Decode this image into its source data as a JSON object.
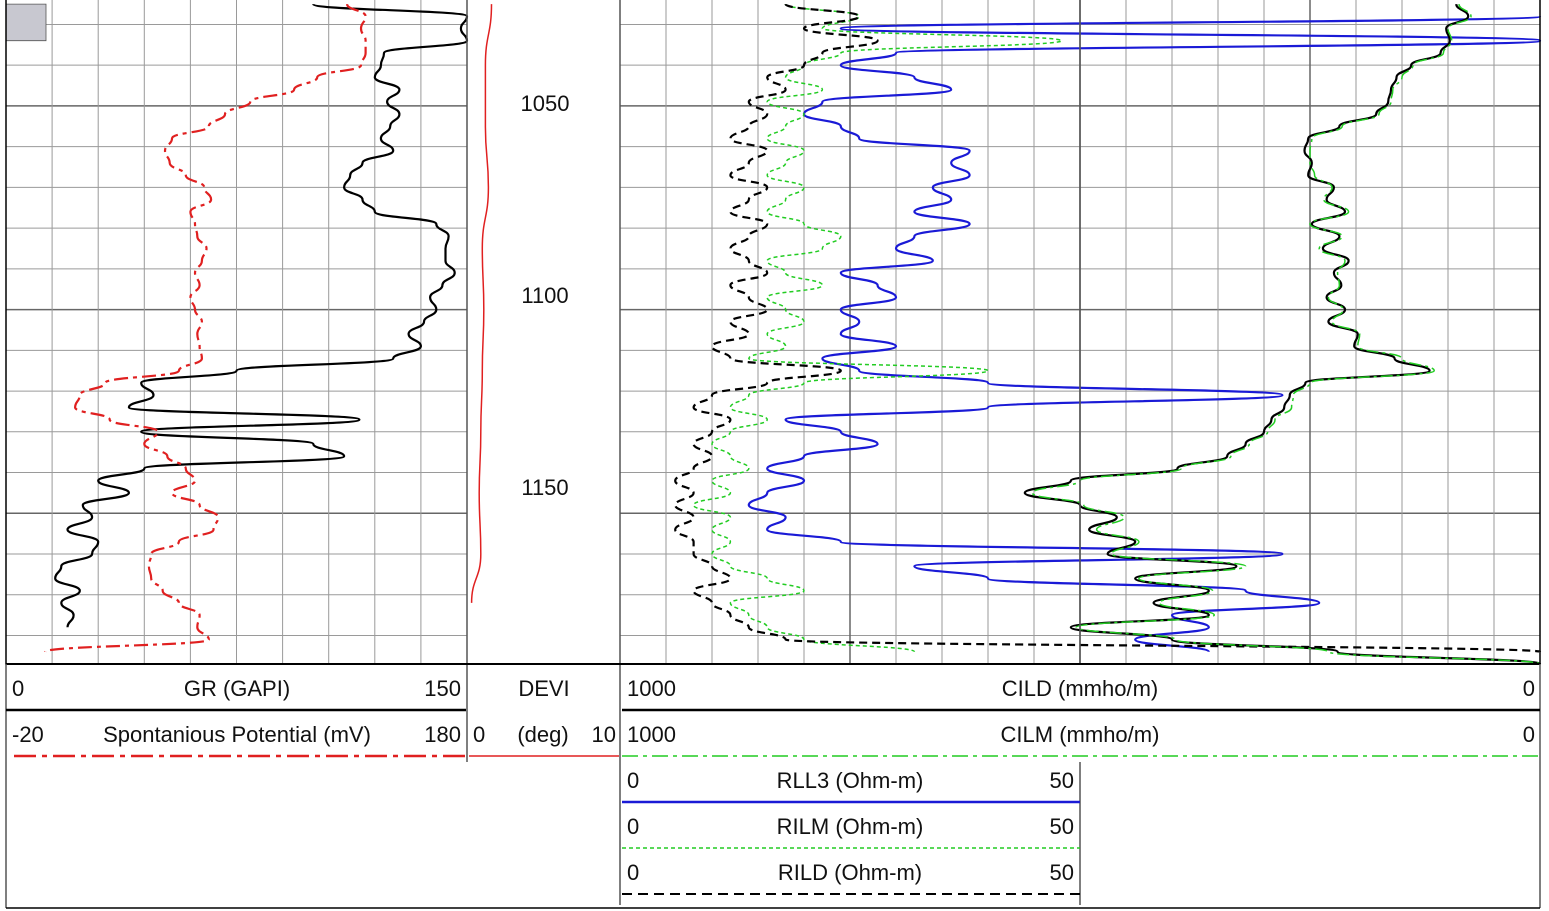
{
  "colors": {
    "gr": "#000000",
    "sp": "#e02020",
    "devi": "#e02020",
    "rll3": "#1a1ad6",
    "rilm": "#22cc22",
    "rild": "#000000",
    "cild": "#000000",
    "cilm": "#22cc22",
    "sand_fill": "#c8c8d0",
    "grid": "#9a9a9a",
    "frame": "#000000"
  },
  "depth_labels": [
    "1050",
    "1100",
    "1150"
  ],
  "headers": {
    "track1": {
      "gr": {
        "left": "0",
        "name": "GR (GAPI)",
        "right": "150"
      },
      "sp": {
        "left": "-20",
        "name": "Spontanious Potential (mV)",
        "right": "180"
      }
    },
    "track2": {
      "devi": {
        "title": "DEVI",
        "left": "0",
        "unit": "(deg)",
        "right": "10"
      }
    },
    "track3": {
      "cild": {
        "left": "1000",
        "name": "CILD (mmho/m)",
        "right": "0"
      },
      "cilm": {
        "left": "1000",
        "name": "CILM (mmho/m)",
        "right": "0"
      },
      "rll3": {
        "left": "0",
        "name": "RLL3 (Ohm-m)",
        "right": "50"
      },
      "rilm": {
        "left": "0",
        "name": "RILM (Ohm-m)",
        "right": "50"
      },
      "rild": {
        "left": "0",
        "name": "RILD (Ohm-m)",
        "right": "50"
      }
    }
  },
  "chart_data": {
    "type": "line",
    "depth_axis": {
      "range": [
        1024,
        1187
      ],
      "ticks": [
        1050,
        1100,
        1150
      ],
      "inverted": true
    },
    "grid": true,
    "tracks": [
      {
        "name": "track1",
        "series": [
          {
            "name": "GR (GAPI)",
            "xlim": [
              0,
              150
            ],
            "depth": [
              1025,
              1028,
              1031,
              1034,
              1037,
              1040,
              1043,
              1046,
              1049,
              1052,
              1055,
              1058,
              1061,
              1064,
              1067,
              1070,
              1073,
              1076,
              1079,
              1082,
              1085,
              1088,
              1091,
              1094,
              1097,
              1100,
              1103,
              1106,
              1109,
              1112,
              1115,
              1118,
              1121,
              1124,
              1127,
              1130,
              1133,
              1136,
              1139,
              1142,
              1145,
              1148,
              1151,
              1154,
              1157,
              1160,
              1163,
              1166,
              1169,
              1172,
              1175,
              1178
            ],
            "values": [
              100,
              152,
              148,
              150,
              123,
              122,
              120,
              128,
              124,
              128,
              125,
              122,
              126,
              116,
              112,
              110,
              116,
              120,
              140,
              144,
              143,
              143,
              146,
              142,
              138,
              140,
              136,
              131,
              135,
              126,
              75,
              44,
              48,
              40,
              115,
              44,
              100,
              110,
              45,
              30,
              40,
              25,
              28,
              20,
              30,
              28,
              18,
              16,
              24,
              18,
              22,
              20
            ]
          },
          {
            "name": "Spontanious Potential (mV)",
            "xlim": [
              -20,
              180
            ],
            "depth": [
              1025,
              1028,
              1031,
              1034,
              1037,
              1040,
              1043,
              1046,
              1049,
              1052,
              1055,
              1058,
              1061,
              1064,
              1067,
              1070,
              1073,
              1076,
              1079,
              1082,
              1085,
              1088,
              1091,
              1094,
              1097,
              1100,
              1103,
              1106,
              1109,
              1112,
              1115,
              1118,
              1121,
              1124,
              1127,
              1130,
              1133,
              1136,
              1139,
              1142,
              1145,
              1148,
              1151,
              1154,
              1157,
              1160,
              1163,
              1166,
              1169,
              1172,
              1175,
              1178,
              1181,
              1184
            ],
            "values": [
              128,
              136,
              134,
              136,
              136,
              134,
              115,
              105,
              86,
              75,
              68,
              52,
              49,
              51,
              58,
              66,
              69,
              60,
              62,
              63,
              67,
              65,
              62,
              64,
              60,
              62,
              65,
              63,
              64,
              65,
              55,
              23,
              12,
              10,
              25,
              46,
              40,
              50,
              58,
              62,
              52,
              64,
              72,
              70,
              55,
              43,
              42,
              43,
              48,
              55,
              64,
              63,
              68,
              -3
            ]
          }
        ]
      },
      {
        "name": "track2",
        "series": [
          {
            "name": "DEVI",
            "xlim": [
              0,
              10
            ],
            "depth": [
              1025,
              1040,
              1055,
              1070,
              1085,
              1100,
              1115,
              1130,
              1145,
              1160,
              1172
            ],
            "values": [
              1.6,
              1.2,
              1.2,
              1.4,
              1.0,
              1.1,
              1.0,
              0.9,
              0.8,
              0.9,
              0.3
            ]
          }
        ]
      },
      {
        "name": "track3",
        "series": [
          {
            "name": "RLL3 (Ohm-m)",
            "xlim": [
              0,
              50
            ],
            "depth": [
              1028,
              1031,
              1034,
              1037,
              1040,
              1043,
              1046,
              1049,
              1052,
              1055,
              1058,
              1061,
              1064,
              1067,
              1070,
              1073,
              1076,
              1079,
              1082,
              1085,
              1088,
              1091,
              1094,
              1097,
              1100,
              1103,
              1106,
              1109,
              1112,
              1115,
              1118,
              1121,
              1124,
              1127,
              1130,
              1133,
              1136,
              1139,
              1142,
              1145,
              1148,
              1151,
              1154,
              1157,
              1160,
              1163,
              1166,
              1169,
              1172,
              1175,
              1178,
              1181,
              1184
            ],
            "values": [
              50,
              12,
              50,
              15,
              12,
              16,
              18,
              11,
              10,
              12,
              13,
              19,
              18,
              19,
              17,
              18,
              16,
              19,
              16,
              15,
              17,
              12,
              14,
              15,
              12,
              13,
              12,
              15,
              11,
              13,
              20,
              36,
              20,
              9,
              12,
              14,
              10,
              8,
              10,
              8,
              7,
              9,
              8,
              12,
              36,
              16,
              20,
              34,
              38,
              30,
              32,
              28,
              32
            ]
          },
          {
            "name": "RILM (Ohm-m)",
            "xlim": [
              0,
              50
            ],
            "depth": [
              1025,
              1028,
              1031,
              1034,
              1037,
              1040,
              1043,
              1046,
              1049,
              1052,
              1055,
              1058,
              1061,
              1064,
              1067,
              1070,
              1073,
              1076,
              1079,
              1082,
              1085,
              1088,
              1091,
              1094,
              1097,
              1100,
              1103,
              1106,
              1109,
              1112,
              1115,
              1118,
              1121,
              1124,
              1127,
              1130,
              1133,
              1136,
              1139,
              1142,
              1145,
              1148,
              1151,
              1154,
              1157,
              1160,
              1163,
              1166,
              1169,
              1172,
              1175,
              1178,
              1181,
              1184
            ],
            "values": [
              9,
              13,
              11,
              24,
              12,
              10,
              9,
              11,
              8,
              10,
              9,
              8,
              10,
              9,
              8,
              10,
              9,
              8,
              10,
              12,
              11,
              8,
              9,
              11,
              8,
              9,
              10,
              8,
              9,
              7,
              20,
              10,
              7,
              6,
              8,
              6,
              5,
              6,
              7,
              5,
              6,
              4,
              6,
              5,
              6,
              5,
              6,
              8,
              10,
              6,
              7,
              8,
              10,
              16
            ]
          },
          {
            "name": "RILD (Ohm-m)",
            "xlim": [
              0,
              50
            ],
            "depth": [
              1025,
              1028,
              1031,
              1034,
              1037,
              1040,
              1043,
              1046,
              1049,
              1052,
              1055,
              1058,
              1061,
              1064,
              1067,
              1070,
              1073,
              1076,
              1079,
              1082,
              1085,
              1088,
              1091,
              1094,
              1097,
              1100,
              1103,
              1106,
              1109,
              1112,
              1115,
              1118,
              1121,
              1124,
              1127,
              1130,
              1133,
              1136,
              1139,
              1142,
              1145,
              1148,
              1151,
              1154,
              1157,
              1160,
              1163,
              1166,
              1169,
              1172,
              1175,
              1178,
              1181,
              1184
            ],
            "values": [
              9,
              13,
              10,
              14,
              11,
              10,
              8,
              9,
              7,
              8,
              7,
              6,
              8,
              7,
              6,
              8,
              7,
              6,
              8,
              7,
              6,
              7,
              8,
              6,
              7,
              8,
              6,
              7,
              5,
              6,
              12,
              8,
              5,
              4,
              6,
              5,
              4,
              5,
              4,
              3,
              4,
              3,
              4,
              3,
              4,
              4,
              5,
              6,
              4,
              5,
              6,
              7,
              9,
              50
            ]
          },
          {
            "name": "CILD (mmho/m)",
            "xlim": [
              1000,
              0
            ],
            "depth": [
              1025,
              1028,
              1031,
              1034,
              1037,
              1040,
              1043,
              1046,
              1049,
              1052,
              1055,
              1058,
              1061,
              1064,
              1067,
              1070,
              1073,
              1076,
              1079,
              1082,
              1085,
              1088,
              1091,
              1094,
              1097,
              1100,
              1103,
              1106,
              1109,
              1112,
              1115,
              1118,
              1121,
              1124,
              1127,
              1130,
              1133,
              1136,
              1139,
              1142,
              1145,
              1148,
              1151,
              1154,
              1157,
              1160,
              1163,
              1166,
              1169,
              1172,
              1175,
              1178,
              1181,
              1184,
              1187
            ],
            "values": [
              91,
              78,
              102,
              98,
              108,
              140,
              156,
              162,
              165,
              178,
              218,
              252,
              256,
              248,
              252,
              224,
              232,
              212,
              248,
              218,
              236,
              208,
              224,
              216,
              232,
              212,
              230,
              198,
              202,
              158,
              120,
              255,
              272,
              278,
              292,
              300,
              320,
              340,
              394,
              510,
              560,
              500,
              460,
              490,
              440,
              470,
              330,
              440,
              360,
              420,
              360,
              510,
              400,
              220,
              0
            ]
          },
          {
            "name": "CILM (mmho/m)",
            "xlim": [
              1000,
              0
            ],
            "depth": [
              1025,
              1028,
              1031,
              1034,
              1037,
              1040,
              1043,
              1046,
              1049,
              1052,
              1055,
              1058,
              1061,
              1064,
              1067,
              1070,
              1073,
              1076,
              1079,
              1082,
              1085,
              1088,
              1091,
              1094,
              1097,
              1100,
              1103,
              1106,
              1109,
              1112,
              1115,
              1118,
              1121,
              1124,
              1127,
              1130,
              1133,
              1136,
              1139,
              1142,
              1145,
              1148,
              1151,
              1154,
              1157,
              1160,
              1163,
              1166,
              1169,
              1172,
              1175,
              1178,
              1181,
              1184,
              1187
            ],
            "values": [
              88,
              75,
              100,
              96,
              105,
              138,
              150,
              160,
              162,
              175,
              215,
              248,
              250,
              250,
              245,
              226,
              235,
              208,
              250,
              215,
              240,
              212,
              220,
              218,
              230,
              214,
              226,
              196,
              198,
              150,
              115,
              250,
              268,
              270,
              288,
              296,
              316,
              336,
              390,
              500,
              552,
              496,
              452,
              482,
              436,
              466,
              320,
              436,
              356,
              414,
              354,
              504,
              396,
              230,
              0
            ]
          }
        ]
      }
    ]
  }
}
